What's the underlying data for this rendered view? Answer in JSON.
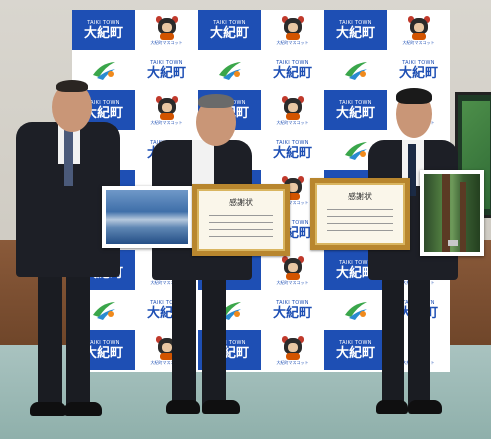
{
  "backdrop": {
    "brand_sub": "TAIKI TOWN",
    "brand_main": "大紀町",
    "mascot_caption": "大紀町マスコット"
  },
  "certificate": {
    "title": "感謝状"
  },
  "colors": {
    "backdrop_blue": "#1e4fb4",
    "logo_green": "#3aa64a",
    "logo_orange": "#f08a1c",
    "frame_gold": "#b8862e"
  },
  "objects": {
    "left_photo": "sea-landscape-photo",
    "right_photo": "forest-photo",
    "backdrop_logo": "taiki-town-logo-icon",
    "backdrop_mascot": "taiki-mascot-icon"
  }
}
